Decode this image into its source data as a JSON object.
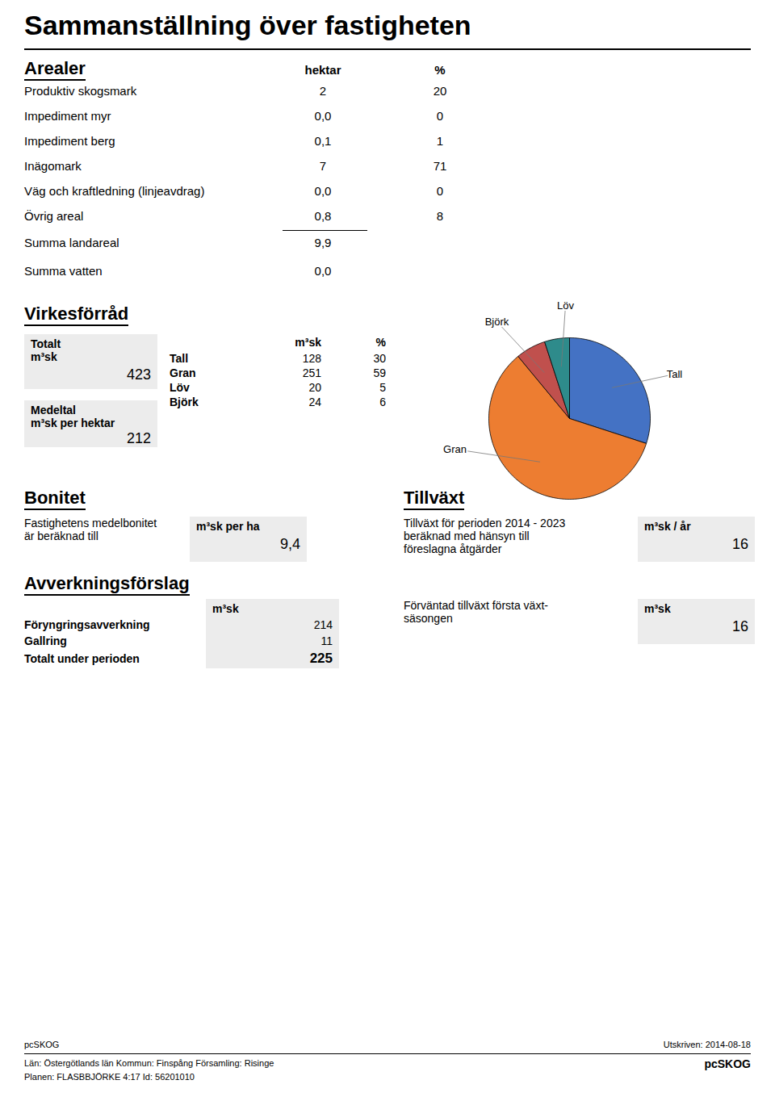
{
  "chart_data": {
    "type": "pie",
    "title": "Sammanställning över fastigheten",
    "categories": [
      "Tall",
      "Gran",
      "Björk",
      "Löv"
    ],
    "values": [
      30,
      59,
      6,
      5
    ],
    "colors": [
      "#4472C4",
      "#ED7D31",
      "#C0504D",
      "#2E8B8B"
    ],
    "annotations": {
      "arealer": {
        "title": "Arealer",
        "columns": [
          "hektar",
          "%"
        ],
        "rows": [
          [
            "Produktiv skogsmark",
            "2",
            "20"
          ],
          [
            "Impediment myr",
            "0,0",
            "0"
          ],
          [
            "Impediment berg",
            "0,1",
            "1"
          ],
          [
            "Inägomark",
            "7",
            "71"
          ],
          [
            "Väg och kraftledning (linjeavdrag)",
            "0,0",
            "0"
          ],
          [
            "Övrig areal",
            "0,8",
            "8"
          ]
        ],
        "sums": [
          [
            "Summa landareal",
            "9,9"
          ],
          [
            "Summa vatten",
            "0,0"
          ]
        ]
      },
      "virkesforrad": {
        "title": "Virkesförråd",
        "total": {
          "label": "Totalt",
          "unit": "m³sk",
          "value": "423"
        },
        "columns": [
          "m³sk",
          "%"
        ],
        "rows": [
          [
            "Tall",
            "128",
            "30"
          ],
          [
            "Gran",
            "251",
            "59"
          ],
          [
            "Löv",
            "20",
            "5"
          ],
          [
            "Björk",
            "24",
            "6"
          ]
        ],
        "mean": {
          "label": "Medeltal",
          "unit": "m³sk per hektar",
          "value": "212"
        }
      },
      "bonitet": {
        "title": "Bonitet",
        "lines": [
          "Fastighetens medelbonitet",
          "är beräknad till"
        ],
        "unit": "m³sk per ha",
        "value": "9,4"
      },
      "tillvaxt": {
        "title": "Tillväxt",
        "lines": [
          "Tillväxt för perioden 2014 - 2023",
          "beräknad med hänsyn till",
          "föreslagna åtgärder"
        ],
        "unit": "m³sk / år",
        "value": "16"
      },
      "avverkning": {
        "title": "Avverkningsförslag",
        "unit": "m³sk",
        "rows": [
          [
            "Föryngringsavverkning",
            "214"
          ],
          [
            "Gallring",
            "11"
          ]
        ],
        "total": [
          "Totalt under perioden",
          "225"
        ]
      },
      "forvantad": {
        "lines": [
          "Förväntad tillväxt första växt-",
          "säsongen"
        ],
        "unit": "m³sk",
        "value": "16"
      },
      "footer": {
        "left": [
          "pcSKOG",
          "Län: Östergötlands län   Kommun: Finspång   Församling: Risinge",
          "Planen: FLASBBJÖRKE 4:17    Id: 56201010"
        ],
        "right": [
          "Utskriven: 2014-08-18",
          "pcSKOG"
        ]
      }
    }
  }
}
